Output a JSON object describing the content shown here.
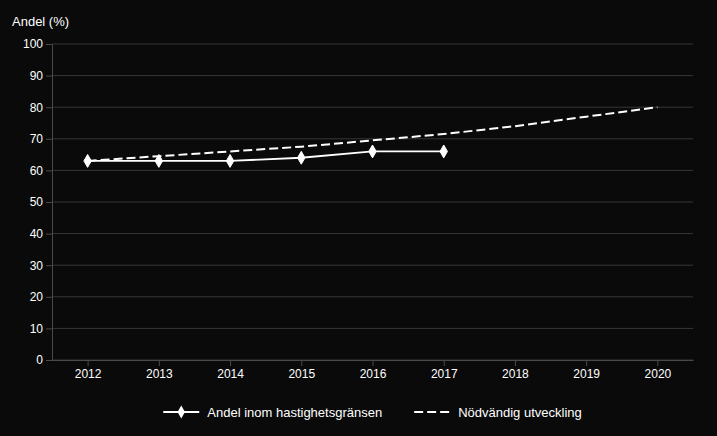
{
  "chart_data": {
    "type": "line",
    "y_label": "Andel (%)",
    "series": [
      {
        "name": "Andel inom hastighetsgränsen",
        "color": "#ffffff",
        "marker": "diamond",
        "line_style": "solid",
        "x": [
          2012,
          2013,
          2014,
          2015,
          2016,
          2017
        ],
        "values": [
          63,
          63,
          63,
          64,
          66,
          66
        ]
      },
      {
        "name": "Nödvändig utveckling",
        "color": "#ffffff",
        "line_style": "dashed",
        "x": [
          2012,
          2013,
          2014,
          2015,
          2016,
          2017,
          2018,
          2019,
          2020
        ],
        "values": [
          63,
          64.5,
          66,
          67.5,
          69.5,
          71.5,
          74,
          77,
          80
        ]
      }
    ],
    "xlim": [
      2011.5,
      2020.5
    ],
    "xticks": [
      2012,
      2013,
      2014,
      2015,
      2016,
      2017,
      2018,
      2019,
      2020
    ],
    "ylim": [
      0,
      100
    ],
    "yticks": [
      0,
      10,
      20,
      30,
      40,
      50,
      60,
      70,
      80,
      90,
      100
    ],
    "grid": true,
    "legend": "bottom"
  }
}
